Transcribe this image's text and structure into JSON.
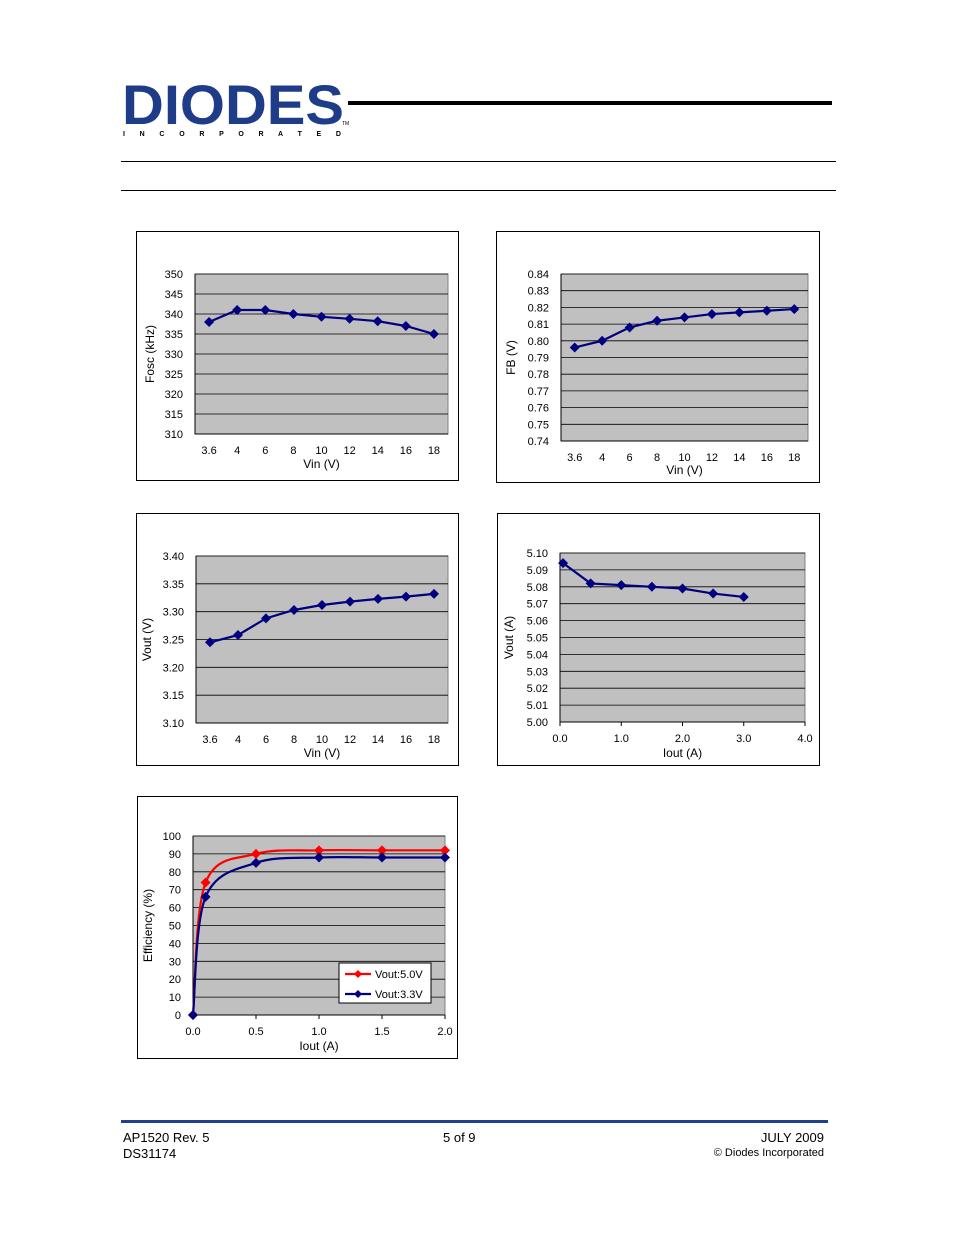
{
  "logo": {
    "main": "DIODES",
    "sub": "I N C O R P O R A T E D",
    "tm": "TM",
    "color": "#1f3c88"
  },
  "charts": [
    {
      "id": "fosc",
      "type": "line",
      "xlabel": "Vin (V)",
      "ylabel": "Fosc (kHz)",
      "categories": [
        "3.6",
        "4",
        "6",
        "8",
        "10",
        "12",
        "14",
        "16",
        "18"
      ],
      "ylim": [
        310,
        350
      ],
      "yticks": [
        "310",
        "315",
        "320",
        "325",
        "330",
        "335",
        "340",
        "345",
        "350"
      ],
      "series": [
        {
          "color": "#000080",
          "values": [
            338,
            341,
            341,
            340,
            339.3,
            338.8,
            338.2,
            337,
            335
          ]
        }
      ]
    },
    {
      "id": "fb",
      "type": "line",
      "xlabel": "Vin (V)",
      "ylabel": "FB (V)",
      "categories": [
        "3.6",
        "4",
        "6",
        "8",
        "10",
        "12",
        "14",
        "16",
        "18"
      ],
      "ylim": [
        0.74,
        0.84
      ],
      "yticks": [
        "0.74",
        "0.75",
        "0.76",
        "0.77",
        "0.78",
        "0.79",
        "0.80",
        "0.81",
        "0.82",
        "0.83",
        "0.84"
      ],
      "series": [
        {
          "color": "#000080",
          "values": [
            0.796,
            0.8,
            0.808,
            0.812,
            0.814,
            0.816,
            0.817,
            0.818,
            0.819
          ]
        }
      ]
    },
    {
      "id": "vout33",
      "type": "line",
      "xlabel": "Vin (V)",
      "ylabel": "Vout (V)",
      "categories": [
        "3.6",
        "4",
        "6",
        "8",
        "10",
        "12",
        "14",
        "16",
        "18"
      ],
      "ylim": [
        3.1,
        3.4
      ],
      "yticks": [
        "3.10",
        "3.15",
        "3.20",
        "3.25",
        "3.30",
        "3.35",
        "3.40"
      ],
      "series": [
        {
          "color": "#000080",
          "values": [
            3.245,
            3.258,
            3.288,
            3.303,
            3.312,
            3.318,
            3.323,
            3.327,
            3.332
          ]
        }
      ]
    },
    {
      "id": "vout50",
      "type": "scatter",
      "xlabel": "Iout (A)",
      "ylabel": "Vout (A)",
      "xlim": [
        0,
        4
      ],
      "xticks": [
        "0.0",
        "1.0",
        "2.0",
        "3.0",
        "4.0"
      ],
      "ylim": [
        5.0,
        5.1
      ],
      "yticks": [
        "5.00",
        "5.01",
        "5.02",
        "5.03",
        "5.04",
        "5.05",
        "5.06",
        "5.07",
        "5.08",
        "5.09",
        "5.10"
      ],
      "series": [
        {
          "color": "#000080",
          "x": [
            0.05,
            0.5,
            1.0,
            1.5,
            2.0,
            2.5,
            3.0
          ],
          "y": [
            5.094,
            5.082,
            5.081,
            5.08,
            5.079,
            5.076,
            5.074
          ]
        }
      ]
    },
    {
      "id": "eff",
      "type": "scatter",
      "xlabel": "Iout (A)",
      "ylabel": "Efficiency (%)",
      "xlim": [
        0,
        2
      ],
      "xticks": [
        "0.0",
        "0.5",
        "1.0",
        "1.5",
        "2.0"
      ],
      "ylim": [
        0,
        100
      ],
      "yticks": [
        "0",
        "10",
        "20",
        "30",
        "40",
        "50",
        "60",
        "70",
        "80",
        "90",
        "100"
      ],
      "series": [
        {
          "name": "Vout:5.0V",
          "color": "#ff0000",
          "x": [
            0,
            0.1,
            0.5,
            1.0,
            1.5,
            2.0
          ],
          "y": [
            0,
            74,
            90,
            92,
            92,
            92
          ]
        },
        {
          "name": "Vout:3.3V",
          "color": "#000080",
          "x": [
            0,
            0.1,
            0.5,
            1.0,
            1.5,
            2.0
          ],
          "y": [
            0,
            66,
            85,
            88,
            88,
            88
          ]
        }
      ],
      "legend": "bottom-right"
    }
  ],
  "footer": {
    "left1": "AP1520 Rev. 5",
    "left2": "DS31174",
    "center": "5 of 9",
    "right1": "JULY 2009",
    "right2": "© Diodes Incorporated"
  }
}
